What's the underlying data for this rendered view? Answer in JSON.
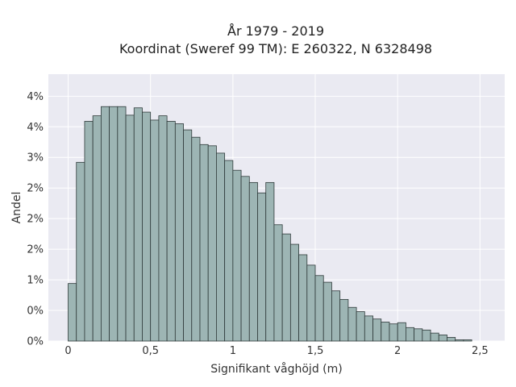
{
  "chart_data": {
    "type": "histogram",
    "title_lines": [
      "År 1979 - 2019",
      "Koordinat (Sweref 99 TM): E 260322, N 6328498"
    ],
    "xlabel": "Signifikant våghöjd (m)",
    "ylabel": "Andel",
    "xlim": [
      -0.12,
      2.65
    ],
    "ylim": [
      0,
      0.0436
    ],
    "bin_width": 0.05,
    "bin_start": 0.0,
    "xticks": [
      {
        "value": 0,
        "label": "0"
      },
      {
        "value": 0.5,
        "label": "0,5"
      },
      {
        "value": 1,
        "label": "1"
      },
      {
        "value": 1.5,
        "label": "1,5"
      },
      {
        "value": 2,
        "label": "2"
      },
      {
        "value": 2.5,
        "label": "2,5"
      }
    ],
    "yticks": [
      {
        "value": 0,
        "label": "0%"
      },
      {
        "value": 0.005,
        "label": "0%"
      },
      {
        "value": 0.01,
        "label": "1%"
      },
      {
        "value": 0.015,
        "label": "2%"
      },
      {
        "value": 0.02,
        "label": "2%"
      },
      {
        "value": 0.025,
        "label": "2%"
      },
      {
        "value": 0.03,
        "label": "3%"
      },
      {
        "value": 0.035,
        "label": "4%"
      },
      {
        "value": 0.04,
        "label": "4%"
      }
    ],
    "values": [
      0.0094,
      0.0292,
      0.0359,
      0.0368,
      0.0383,
      0.0383,
      0.0383,
      0.0369,
      0.0381,
      0.0374,
      0.0361,
      0.0368,
      0.0359,
      0.0355,
      0.0345,
      0.0333,
      0.0321,
      0.0319,
      0.0307,
      0.0295,
      0.0279,
      0.0269,
      0.0259,
      0.0242,
      0.0259,
      0.019,
      0.0175,
      0.0158,
      0.0141,
      0.0124,
      0.0107,
      0.0096,
      0.0082,
      0.0068,
      0.0055,
      0.0048,
      0.0041,
      0.0036,
      0.0031,
      0.0028,
      0.003,
      0.0022,
      0.002,
      0.0018,
      0.0013,
      0.001,
      0.0006,
      0.0002,
      0.0002
    ],
    "bar_color": "#9db5b4",
    "edge_color": "#2f3a3a",
    "plot_bg": "#eaeaf2",
    "grid": true
  }
}
